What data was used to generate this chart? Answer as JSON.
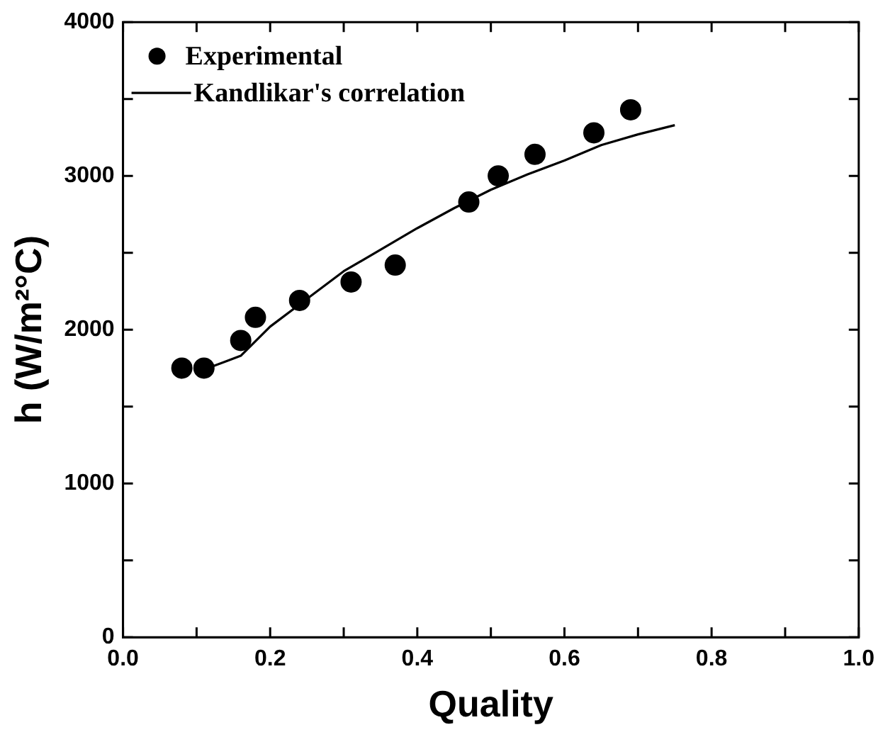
{
  "chart_data": {
    "type": "scatter",
    "xlabel": "Quality",
    "ylabel": "h (W/m²°C)",
    "xlim": [
      0,
      1
    ],
    "xticks": [
      {
        "value": 0,
        "label": "0.0"
      },
      {
        "value": 0.1,
        "label": null
      },
      {
        "value": 0.2,
        "label": "0.2"
      },
      {
        "value": 0.3,
        "label": null
      },
      {
        "value": 0.4,
        "label": "0.4"
      },
      {
        "value": 0.5,
        "label": null
      },
      {
        "value": 0.6,
        "label": "0.6"
      },
      {
        "value": 0.7,
        "label": null
      },
      {
        "value": 0.8,
        "label": "0.8"
      },
      {
        "value": 0.9,
        "label": null
      },
      {
        "value": 1,
        "label": "1.0"
      }
    ],
    "ylim": [
      0,
      4000
    ],
    "yticks": [
      0,
      {
        "value": 500,
        "label": null
      },
      1000,
      {
        "value": 1500,
        "label": null
      },
      2000,
      {
        "value": 2500,
        "label": null
      },
      3000,
      {
        "value": 3500,
        "label": null
      },
      4000
    ],
    "grid": false,
    "legend": "top left",
    "series": [
      {
        "name": "Experimental",
        "marker": "circle",
        "color": "#000000",
        "x": [
          0.08,
          0.11,
          0.16,
          0.18,
          0.24,
          0.31,
          0.37,
          0.47,
          0.51,
          0.56,
          0.64,
          0.69
        ],
        "values": [
          1750,
          1750,
          1930,
          2080,
          2190,
          2310,
          2420,
          2830,
          3000,
          3140,
          3280,
          3430
        ]
      },
      {
        "name": "Kandlikar's correlation",
        "type": "line",
        "marker": "none",
        "line_style": "solid",
        "color": "#000000",
        "x": [
          0.11,
          0.16,
          0.2,
          0.25,
          0.3,
          0.35,
          0.4,
          0.45,
          0.5,
          0.55,
          0.6,
          0.65,
          0.7,
          0.75
        ],
        "values": [
          1740,
          1830,
          2020,
          2200,
          2380,
          2520,
          2660,
          2790,
          2910,
          3010,
          3100,
          3200,
          3270,
          3330
        ]
      }
    ]
  }
}
